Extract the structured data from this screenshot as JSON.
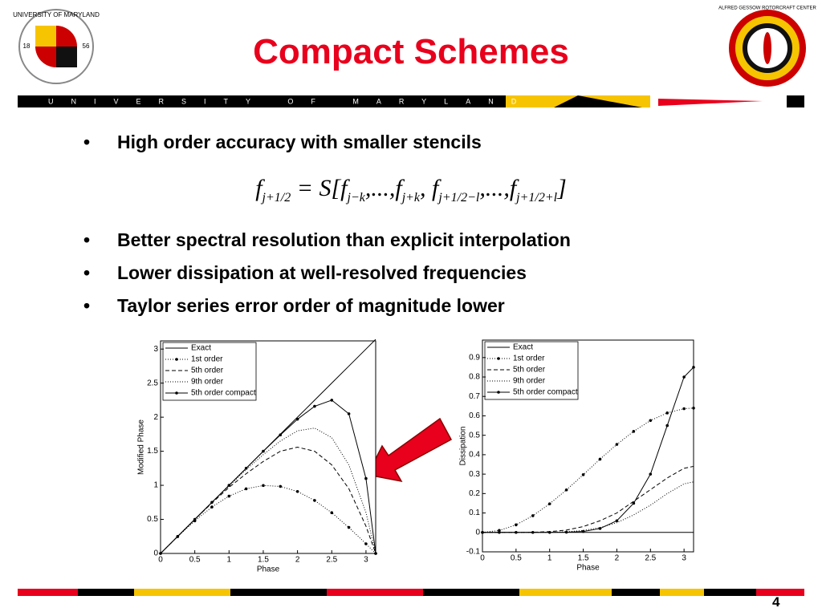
{
  "slide": {
    "title": "Compact Schemes",
    "left_logo": {
      "name": "UNIVERSITY OF MARYLAND",
      "left_year": "18",
      "right_year": "56"
    },
    "right_logo": {
      "name": "ALFRED GESSOW ROTORCRAFT CENTER"
    },
    "banner": "UNIVERSITY OF MARYLAND",
    "bullets": [
      "High order accuracy with smaller stencils",
      "Better spectral resolution than explicit interpolation",
      "Lower dissipation at well-resolved frequencies",
      "Taylor series error order of magnitude lower"
    ],
    "formula": [
      {
        "base": "f",
        "sub": "j+1/2"
      },
      {
        "base": " = S[f",
        "sub": "j−k"
      },
      {
        "base": ",...,f",
        "sub": "j+k"
      },
      {
        "base": ", f",
        "sub": "j+1/2−l"
      },
      {
        "base": ",...,f",
        "sub": "j+1/2+l"
      },
      {
        "base": "]"
      }
    ],
    "page_number": "4"
  },
  "chart_data": [
    {
      "type": "line",
      "xlabel": "Phase",
      "ylabel": "Modified Phase",
      "x": [
        0,
        0.25,
        0.5,
        0.75,
        1,
        1.25,
        1.5,
        1.75,
        2,
        2.25,
        2.5,
        2.75,
        3,
        3.1416
      ],
      "xlim": [
        0,
        3.1416
      ],
      "xticks": [
        0,
        0.5,
        1,
        1.5,
        2,
        2.5,
        3
      ],
      "ylim": [
        0,
        3.12
      ],
      "yticks": [
        0,
        0.5,
        1,
        1.5,
        2,
        2.5,
        3
      ],
      "series": [
        {
          "name": "Exact",
          "color": "#000000",
          "style": "solid",
          "values": [
            0,
            0.25,
            0.5,
            0.75,
            1,
            1.25,
            1.5,
            1.75,
            2,
            2.25,
            2.5,
            2.75,
            3,
            3.1416
          ]
        },
        {
          "name": "1st order",
          "color": "#000000",
          "style": "dot-marker",
          "values": [
            0,
            0.247,
            0.479,
            0.682,
            0.841,
            0.949,
            0.997,
            0.984,
            0.909,
            0.778,
            0.598,
            0.382,
            0.141,
            0
          ]
        },
        {
          "name": "5th order",
          "color": "#000000",
          "style": "dashed",
          "values": [
            0,
            0.25,
            0.5,
            0.74,
            0.97,
            1.17,
            1.35,
            1.5,
            1.56,
            1.5,
            1.3,
            0.95,
            0.4,
            0
          ]
        },
        {
          "name": "9th order",
          "color": "#000000",
          "style": "dotted",
          "values": [
            0,
            0.25,
            0.5,
            0.75,
            0.99,
            1.23,
            1.45,
            1.65,
            1.8,
            1.84,
            1.7,
            1.3,
            0.6,
            0
          ]
        },
        {
          "name": "5th order compact",
          "color": "#000000",
          "style": "solid-marker",
          "values": [
            0,
            0.25,
            0.5,
            0.75,
            1,
            1.25,
            1.5,
            1.74,
            1.97,
            2.16,
            2.25,
            2.05,
            1.1,
            0
          ]
        }
      ]
    },
    {
      "type": "line",
      "xlabel": "Phase",
      "ylabel": "Dissipation",
      "x": [
        0,
        0.25,
        0.5,
        0.75,
        1,
        1.25,
        1.5,
        1.75,
        2,
        2.25,
        2.5,
        2.75,
        3,
        3.1416
      ],
      "xlim": [
        0,
        3.1416
      ],
      "xticks": [
        0,
        0.5,
        1,
        1.5,
        2,
        2.5,
        3
      ],
      "ylim": [
        -0.1,
        0.99
      ],
      "yticks": [
        -0.1,
        0,
        0.1,
        0.2,
        0.3,
        0.4,
        0.5,
        0.6,
        0.7,
        0.8,
        0.9
      ],
      "series": [
        {
          "name": "Exact",
          "color": "#000000",
          "style": "solid",
          "values": [
            0,
            0,
            0,
            0,
            0,
            0,
            0,
            0,
            0,
            0,
            0,
            0,
            0,
            0
          ]
        },
        {
          "name": "1st order",
          "color": "#000000",
          "style": "dot-marker",
          "values": [
            0,
            0.01,
            0.039,
            0.086,
            0.147,
            0.219,
            0.297,
            0.377,
            0.453,
            0.52,
            0.576,
            0.615,
            0.637,
            0.64
          ]
        },
        {
          "name": "5th order",
          "color": "#000000",
          "style": "dashed",
          "values": [
            0,
            0,
            0,
            0.001,
            0.004,
            0.012,
            0.03,
            0.06,
            0.1,
            0.16,
            0.22,
            0.28,
            0.33,
            0.34
          ]
        },
        {
          "name": "9th order",
          "color": "#000000",
          "style": "dotted",
          "values": [
            0,
            0,
            0,
            0,
            0.001,
            0.003,
            0.01,
            0.025,
            0.05,
            0.09,
            0.14,
            0.2,
            0.25,
            0.26
          ]
        },
        {
          "name": "5th order compact",
          "color": "#000000",
          "style": "solid-marker",
          "values": [
            0,
            0,
            0,
            0,
            0,
            0.001,
            0.005,
            0.02,
            0.06,
            0.15,
            0.3,
            0.55,
            0.8,
            0.85
          ]
        }
      ]
    }
  ]
}
